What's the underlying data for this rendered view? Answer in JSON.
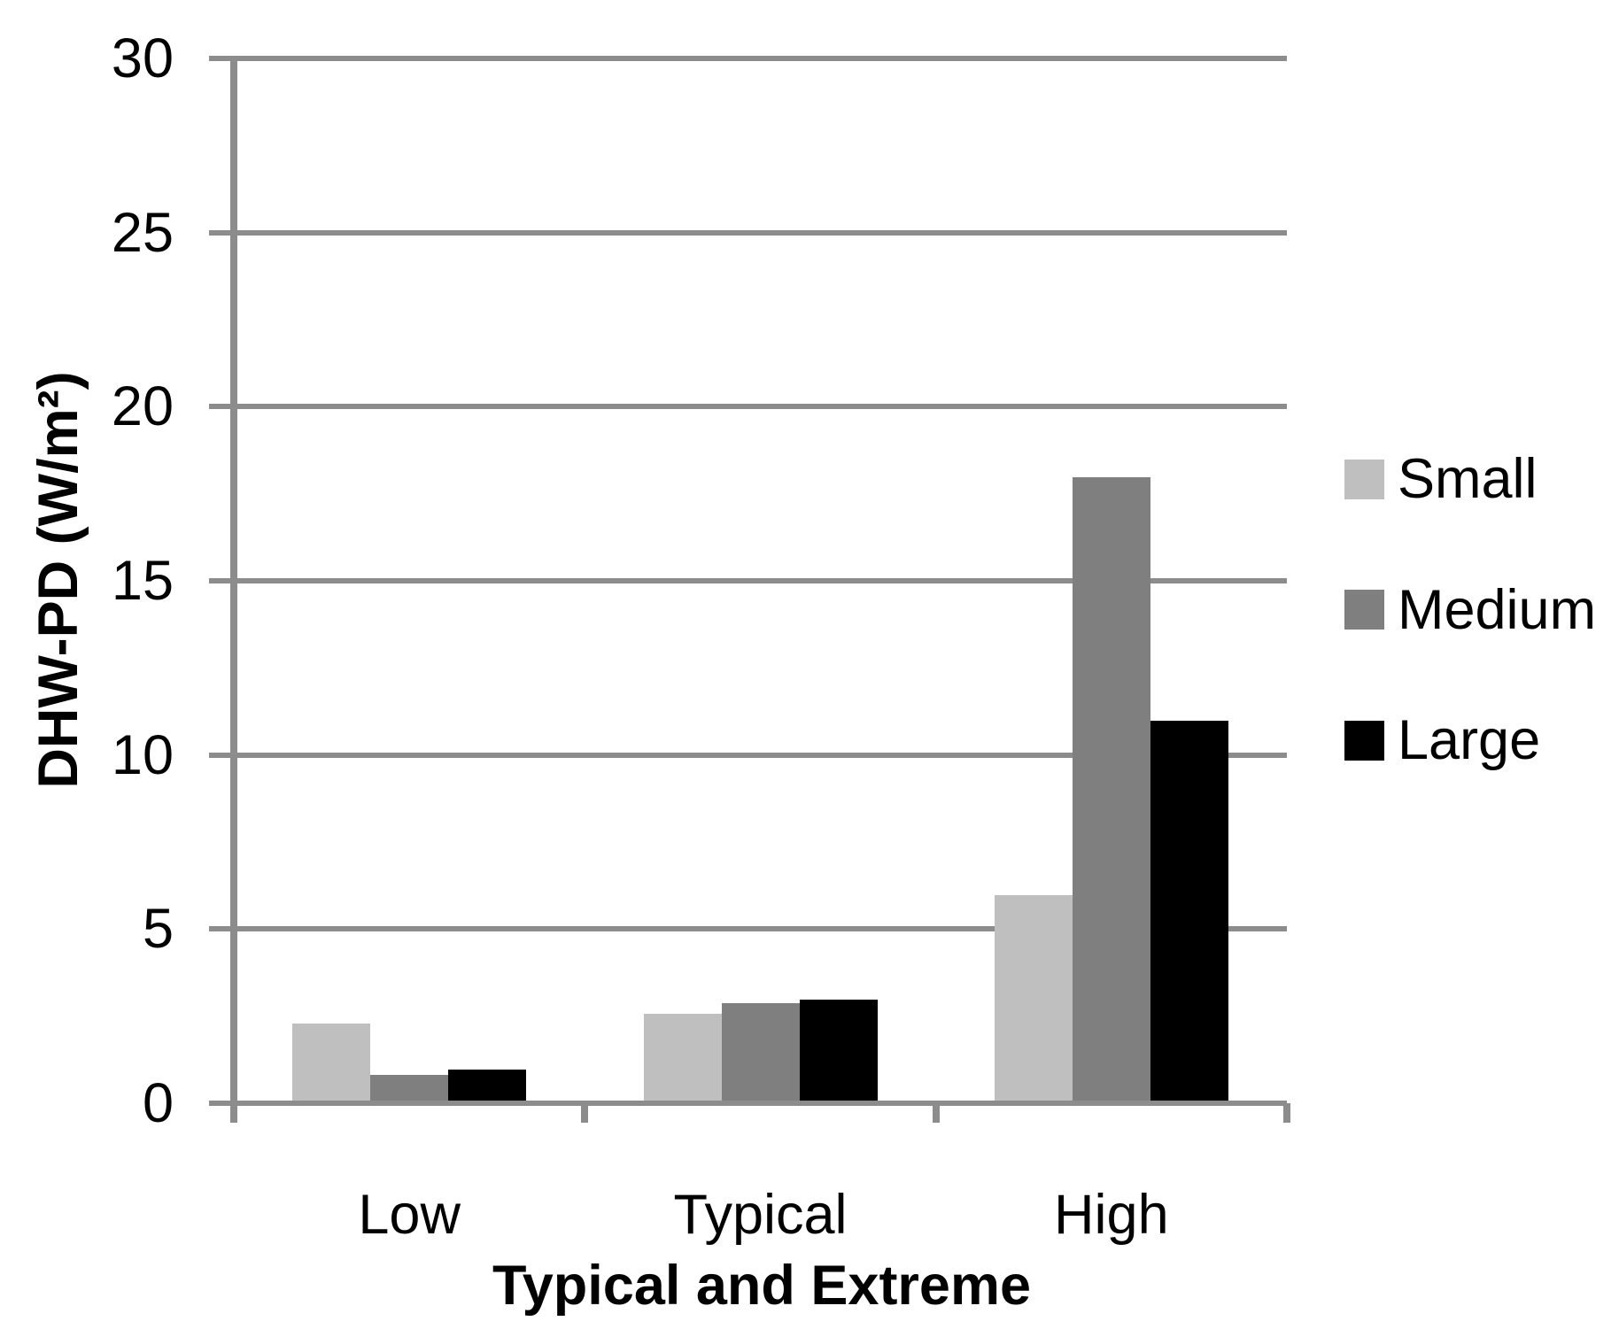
{
  "chart_data": {
    "type": "bar",
    "xlabel": "Typical and Extreme",
    "ylabel": "DHW-PD (W/m²)",
    "categories": [
      "Low",
      "Typical",
      "High"
    ],
    "series": [
      {
        "name": "Small",
        "color": "#BFBFBF",
        "values": [
          2.2,
          2.5,
          5.9
        ]
      },
      {
        "name": "Medium",
        "color": "#7F7F7F",
        "values": [
          0.75,
          2.8,
          17.9
        ]
      },
      {
        "name": "Large",
        "color": "#000000",
        "values": [
          0.9,
          2.9,
          10.9
        ]
      }
    ],
    "ylim": [
      0,
      30
    ],
    "yticks": [
      0,
      5,
      10,
      15,
      20,
      25,
      30
    ],
    "grid": true,
    "legend_position": "right",
    "gridline_color": "#8C8C8C",
    "axis_color": "#8C8C8C",
    "text_color": "#000000"
  }
}
